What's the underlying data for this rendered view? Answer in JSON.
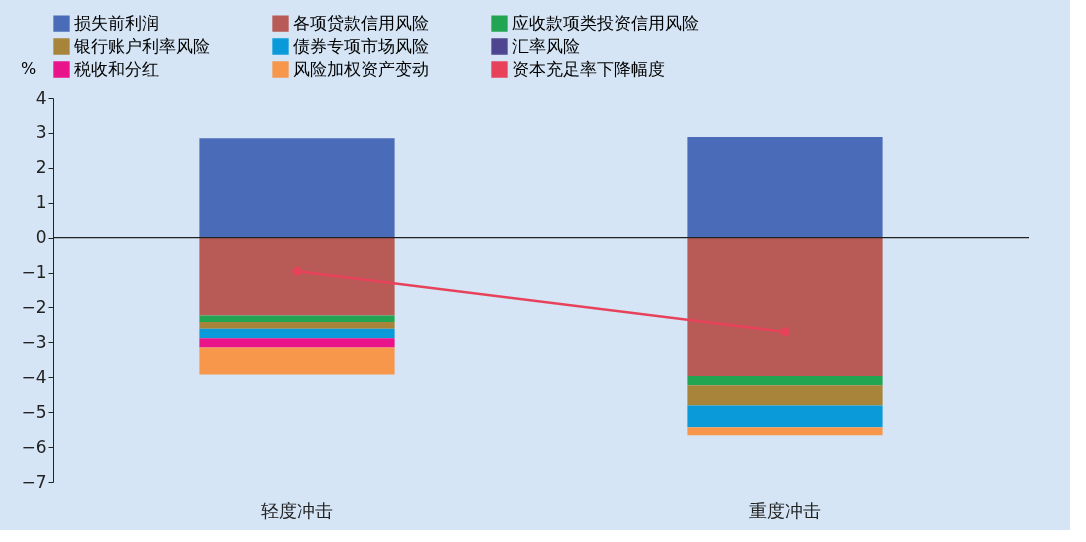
{
  "chart_data": {
    "type": "bar",
    "stacked": true,
    "categories": [
      "轻度冲击",
      "重度冲击"
    ],
    "ylabel": "%",
    "ylim": [
      -7,
      4
    ],
    "yticks": [
      -7,
      -6,
      -5,
      -4,
      -3,
      -2,
      -1,
      0,
      1,
      2,
      3,
      4
    ],
    "grid": false,
    "legend": "top",
    "ref_lines": [
      {
        "axis": "y",
        "value": 0
      }
    ],
    "series": [
      {
        "name": "损失前利润",
        "color": "#4a6cb8",
        "values": [
          2.85,
          2.88
        ]
      },
      {
        "name": "各项贷款信用风险",
        "color": "#b85a55",
        "values": [
          -2.23,
          -3.96
        ]
      },
      {
        "name": "应收款项类投资信用风险",
        "color": "#22a553",
        "values": [
          -0.19,
          -0.27
        ]
      },
      {
        "name": "银行账户利率风险",
        "color": "#a8843a",
        "values": [
          -0.19,
          -0.58
        ]
      },
      {
        "name": "债券专项市场风险",
        "color": "#0a9ad9",
        "values": [
          -0.27,
          -0.62
        ]
      },
      {
        "name": "汇率风险",
        "color": "#4e4590",
        "values": [
          0,
          0
        ]
      },
      {
        "name": "税收和分红",
        "color": "#e9138a",
        "values": [
          -0.27,
          0
        ]
      },
      {
        "name": "风险加权资产变动",
        "color": "#f6974c",
        "values": [
          -0.77,
          -0.23
        ]
      },
      {
        "name": "资本充足率下降幅度",
        "color": "#e8415a",
        "type": "line",
        "marker": "circle",
        "values": [
          -0.96,
          -2.7
        ]
      }
    ]
  }
}
